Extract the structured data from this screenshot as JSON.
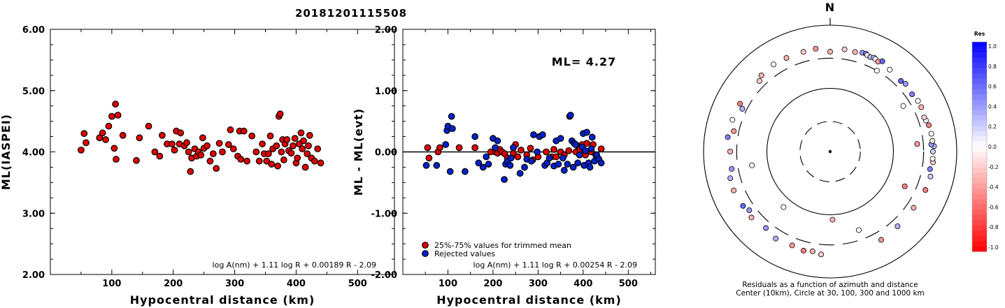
{
  "title": "20181201115508",
  "chart_data": [
    {
      "type": "scatter",
      "xlabel": "Hypocentral distance (km)",
      "ylabel": "ML(IASPEI)",
      "xlim": [
        0,
        560
      ],
      "ylim": [
        2.0,
        6.0
      ],
      "xticks": [
        "100",
        "200",
        "300",
        "400",
        "500"
      ],
      "yticks": [
        "6.00",
        "5.00",
        "4.00",
        "3.00",
        "2.00"
      ],
      "annotation": "log A(nm) + 1.11 log R + 0.00189 R - 2.09",
      "series": [
        {
          "color": "#e00000",
          "points": [
            [
              50,
              4.03
            ],
            [
              55,
              4.3
            ],
            [
              58,
              4.15
            ],
            [
              80,
              4.23
            ],
            [
              85,
              4.31
            ],
            [
              90,
              4.2
            ],
            [
              95,
              4.42
            ],
            [
              100,
              4.58
            ],
            [
              104,
              4.06
            ],
            [
              106,
              4.78
            ],
            [
              107,
              3.88
            ],
            [
              110,
              4.6
            ],
            [
              118,
              4.27
            ],
            [
              140,
              3.86
            ],
            [
              145,
              4.23
            ],
            [
              160,
              4.42
            ],
            [
              170,
              4.0
            ],
            [
              178,
              3.93
            ],
            [
              182,
              4.27
            ],
            [
              190,
              4.13
            ],
            [
              198,
              4.13
            ],
            [
              202,
              4.03
            ],
            [
              205,
              4.34
            ],
            [
              210,
              4.13
            ],
            [
              212,
              4.31
            ],
            [
              218,
              4.1
            ],
            [
              222,
              4.15
            ],
            [
              225,
              4.0
            ],
            [
              228,
              3.68
            ],
            [
              230,
              3.9
            ],
            [
              235,
              4.05
            ],
            [
              238,
              3.93
            ],
            [
              241,
              4.0
            ],
            [
              245,
              3.95
            ],
            [
              248,
              4.23
            ],
            [
              250,
              4.06
            ],
            [
              255,
              4.1
            ],
            [
              260,
              3.85
            ],
            [
              265,
              3.97
            ],
            [
              270,
              3.73
            ],
            [
              275,
              4.14
            ],
            [
              280,
              4.0
            ],
            [
              290,
              4.12
            ],
            [
              293,
              4.36
            ],
            [
              298,
              4.05
            ],
            [
              305,
              3.93
            ],
            [
              308,
              4.34
            ],
            [
              310,
              3.88
            ],
            [
              315,
              4.34
            ],
            [
              320,
              3.85
            ],
            [
              328,
              4.26
            ],
            [
              335,
              4.0
            ],
            [
              340,
              3.85
            ],
            [
              345,
              4.13
            ],
            [
              348,
              3.97
            ],
            [
              352,
              3.85
            ],
            [
              355,
              3.97
            ],
            [
              358,
              4.26
            ],
            [
              360,
              3.8
            ],
            [
              362,
              4.05
            ],
            [
              368,
              4.1
            ],
            [
              370,
              3.77
            ],
            [
              372,
              4.58
            ],
            [
              374,
              4.62
            ],
            [
              376,
              4.0
            ],
            [
              378,
              4.2
            ],
            [
              380,
              3.87
            ],
            [
              382,
              4.13
            ],
            [
              385,
              4.2
            ],
            [
              388,
              4.02
            ],
            [
              392,
              3.98
            ],
            [
              395,
              4.1
            ],
            [
              398,
              4.22
            ],
            [
              400,
              3.82
            ],
            [
              402,
              3.9
            ],
            [
              405,
              4.13
            ],
            [
              408,
              4.31
            ],
            [
              410,
              4.05
            ],
            [
              412,
              4.18
            ],
            [
              415,
              3.75
            ],
            [
              418,
              3.97
            ],
            [
              420,
              4.1
            ],
            [
              422,
              4.27
            ],
            [
              425,
              3.9
            ],
            [
              430,
              3.85
            ],
            [
              435,
              4.05
            ],
            [
              440,
              3.82
            ]
          ]
        }
      ]
    },
    {
      "type": "scatter",
      "xlabel": "Hypocentral distance (km)",
      "ylabel": "ML - ML(evt)",
      "xlim": [
        0,
        560
      ],
      "ylim": [
        -2.0,
        2.0
      ],
      "xticks": [
        "100",
        "200",
        "300",
        "400",
        "500"
      ],
      "yticks": [
        "2.00",
        "1.00",
        "0.00",
        "-1.00",
        "-2.00"
      ],
      "reference_line": 0.0,
      "label": "ML= 4.27",
      "annotation": "log A(nm) + 1.11 log R + 0.00254 R - 2.09",
      "legend": [
        "25%-75% values for trimmed mean",
        "Rejected values"
      ],
      "series": [
        {
          "name": "25%-75% values for trimmed mean",
          "color": "#e00000",
          "points": [
            [
              55,
              0.07
            ],
            [
              58,
              -0.1
            ],
            [
              78,
              0.0
            ],
            [
              82,
              0.07
            ],
            [
              125,
              0.07
            ],
            [
              160,
              0.07
            ],
            [
              195,
              0.0
            ],
            [
              205,
              0.0
            ],
            [
              210,
              -0.02
            ],
            [
              215,
              0.04
            ],
            [
              220,
              0.0
            ],
            [
              226,
              -0.03
            ],
            [
              232,
              -0.1
            ],
            [
              245,
              -0.02
            ],
            [
              250,
              0.12
            ],
            [
              255,
              -0.08
            ],
            [
              262,
              0.03
            ],
            [
              275,
              -0.05
            ],
            [
              283,
              0.06
            ],
            [
              288,
              -0.13
            ],
            [
              300,
              -0.08
            ],
            [
              318,
              0.0
            ],
            [
              330,
              -0.08
            ],
            [
              335,
              0.04
            ],
            [
              340,
              -0.08
            ],
            [
              350,
              0.0
            ],
            [
              358,
              -0.05
            ],
            [
              368,
              0.02
            ],
            [
              384,
              0.0
            ],
            [
              388,
              0.1
            ],
            [
              393,
              0.04
            ],
            [
              398,
              0.12
            ],
            [
              402,
              0.0
            ],
            [
              405,
              -0.05
            ],
            [
              408,
              0.14
            ],
            [
              418,
              0.0
            ],
            [
              422,
              0.12
            ],
            [
              428,
              -0.05
            ],
            [
              432,
              -0.1
            ],
            [
              440,
              0.05
            ]
          ]
        },
        {
          "name": "Rejected values",
          "color": "#0022cc",
          "points": [
            [
              52,
              -0.22
            ],
            [
              75,
              -0.22
            ],
            [
              95,
              0.12
            ],
            [
              98,
              0.35
            ],
            [
              100,
              0.42
            ],
            [
              105,
              -0.32
            ],
            [
              108,
              0.58
            ],
            [
              110,
              0.38
            ],
            [
              138,
              -0.32
            ],
            [
              160,
              0.25
            ],
            [
              168,
              -0.18
            ],
            [
              178,
              -0.25
            ],
            [
              185,
              -0.08
            ],
            [
              190,
              -0.2
            ],
            [
              200,
              0.22
            ],
            [
              205,
              0.07
            ],
            [
              210,
              0.18
            ],
            [
              225,
              -0.45
            ],
            [
              228,
              -0.2
            ],
            [
              232,
              -0.15
            ],
            [
              238,
              -0.22
            ],
            [
              240,
              -0.1
            ],
            [
              245,
              0.07
            ],
            [
              260,
              -0.35
            ],
            [
              270,
              -0.25
            ],
            [
              275,
              -0.12
            ],
            [
              285,
              -0.15
            ],
            [
              290,
              0.28
            ],
            [
              298,
              0.0
            ],
            [
              303,
              0.25
            ],
            [
              310,
              0.28
            ],
            [
              315,
              -0.22
            ],
            [
              320,
              -0.18
            ],
            [
              325,
              -0.1
            ],
            [
              335,
              -0.23
            ],
            [
              340,
              0.18
            ],
            [
              345,
              -0.2
            ],
            [
              350,
              0.22
            ],
            [
              355,
              -0.1
            ],
            [
              358,
              -0.3
            ],
            [
              365,
              -0.2
            ],
            [
              370,
              0.58
            ],
            [
              372,
              0.6
            ],
            [
              375,
              0.18
            ],
            [
              378,
              -0.25
            ],
            [
              380,
              0.14
            ],
            [
              383,
              0.12
            ],
            [
              388,
              -0.18
            ],
            [
              392,
              -0.05
            ],
            [
              398,
              0.08
            ],
            [
              400,
              0.3
            ],
            [
              402,
              -0.22
            ],
            [
              405,
              0.02
            ],
            [
              408,
              0.32
            ],
            [
              412,
              -0.18
            ],
            [
              415,
              -0.25
            ],
            [
              418,
              0.05
            ],
            [
              420,
              0.24
            ],
            [
              425,
              -0.15
            ],
            [
              430,
              -0.05
            ],
            [
              435,
              -0.12
            ],
            [
              440,
              -0.18
            ]
          ]
        }
      ]
    },
    {
      "type": "polar-scatter",
      "north_label": "N",
      "caption_line1": "Residuals as a function of azimuth and distance",
      "caption_line2": "Center (10km), Circle at 30, 100, 300 and 1000 km",
      "colorbar": {
        "title": "Res",
        "ticks": [
          "1.0",
          "0.8",
          "0.6",
          "0.4",
          "0.2",
          "0.0",
          "-0.2",
          "-0.4",
          "-0.6",
          "-0.8",
          "-1.0"
        ],
        "range": [
          -1.0,
          1.0
        ],
        "positive_color": "#0000ff",
        "negative_color": "#ff0000"
      },
      "distance_circles_km": [
        30,
        100,
        300,
        1000
      ],
      "points": [
        [
          8,
          430,
          -0.2
        ],
        [
          14,
          420,
          -0.3
        ],
        [
          18,
          440,
          0.4
        ],
        [
          20,
          445,
          0.5
        ],
        [
          21,
          430,
          -0.1
        ],
        [
          23,
          420,
          0.3
        ],
        [
          25,
          435,
          0.2
        ],
        [
          26,
          425,
          0.0
        ],
        [
          28,
          410,
          -0.4
        ],
        [
          30,
          445,
          0.6
        ],
        [
          0,
          380,
          -0.3
        ],
        [
          -8,
          440,
          -0.4
        ],
        [
          -15,
          430,
          -0.2
        ],
        [
          -25,
          430,
          -0.3
        ],
        [
          -33,
          440,
          0.0
        ],
        [
          -42,
          420,
          -0.3
        ],
        [
          -45,
          380,
          -0.2
        ],
        [
          -62,
          410,
          -0.5
        ],
        [
          -64,
          350,
          0.3
        ],
        [
          -72,
          420,
          0.0
        ],
        [
          -78,
          360,
          -0.4
        ],
        [
          -82,
          430,
          0.5
        ],
        [
          -90,
          380,
          -0.3
        ],
        [
          -100,
          380,
          0.4
        ],
        [
          -105,
          430,
          0.3
        ],
        [
          -112,
          440,
          -0.3
        ],
        [
          -122,
          420,
          0.6
        ],
        [
          -126,
          380,
          0.4
        ],
        [
          -130,
          420,
          -0.3
        ],
        [
          -140,
          380,
          0.4
        ],
        [
          -148,
          420,
          0.3
        ],
        [
          -158,
          400,
          -0.4
        ],
        [
          -165,
          420,
          -0.5
        ],
        [
          -170,
          400,
          -0.3
        ],
        [
          -175,
          430,
          -0.2
        ],
        [
          150,
          410,
          -0.4
        ],
        [
          138,
          390,
          0.3
        ],
        [
          124,
          390,
          -0.3
        ],
        [
          112,
          420,
          -0.5
        ],
        [
          104,
          430,
          0.2
        ],
        [
          100,
          400,
          0.5
        ],
        [
          96,
          430,
          -0.2
        ],
        [
          94,
          420,
          0.0
        ],
        [
          90,
          420,
          0.2
        ],
        [
          87,
          440,
          0.3
        ],
        [
          86,
          400,
          0.4
        ],
        [
          84,
          420,
          -0.1
        ],
        [
          80,
          420,
          0.0
        ],
        [
          75,
          410,
          -0.5
        ],
        [
          72,
          390,
          0.0
        ],
        [
          70,
          380,
          -0.2
        ],
        [
          64,
          400,
          -0.3
        ],
        [
          60,
          400,
          0.0
        ],
        [
          55,
          380,
          0.5
        ],
        [
          48,
          400,
          0.4
        ],
        [
          45,
          380,
          0.6
        ],
        [
          36,
          400,
          0.0
        ],
        [
          30,
          300,
          0.0
        ],
        [
          58,
          230,
          0.0
        ],
        [
          85,
          240,
          -0.4
        ],
        [
          115,
          200,
          -0.5
        ],
        [
          160,
          210,
          0.0
        ],
        [
          178,
          120,
          -0.3
        ],
        [
          -100,
          180,
          0.0
        ],
        [
          -140,
          140,
          0.0
        ]
      ]
    }
  ]
}
